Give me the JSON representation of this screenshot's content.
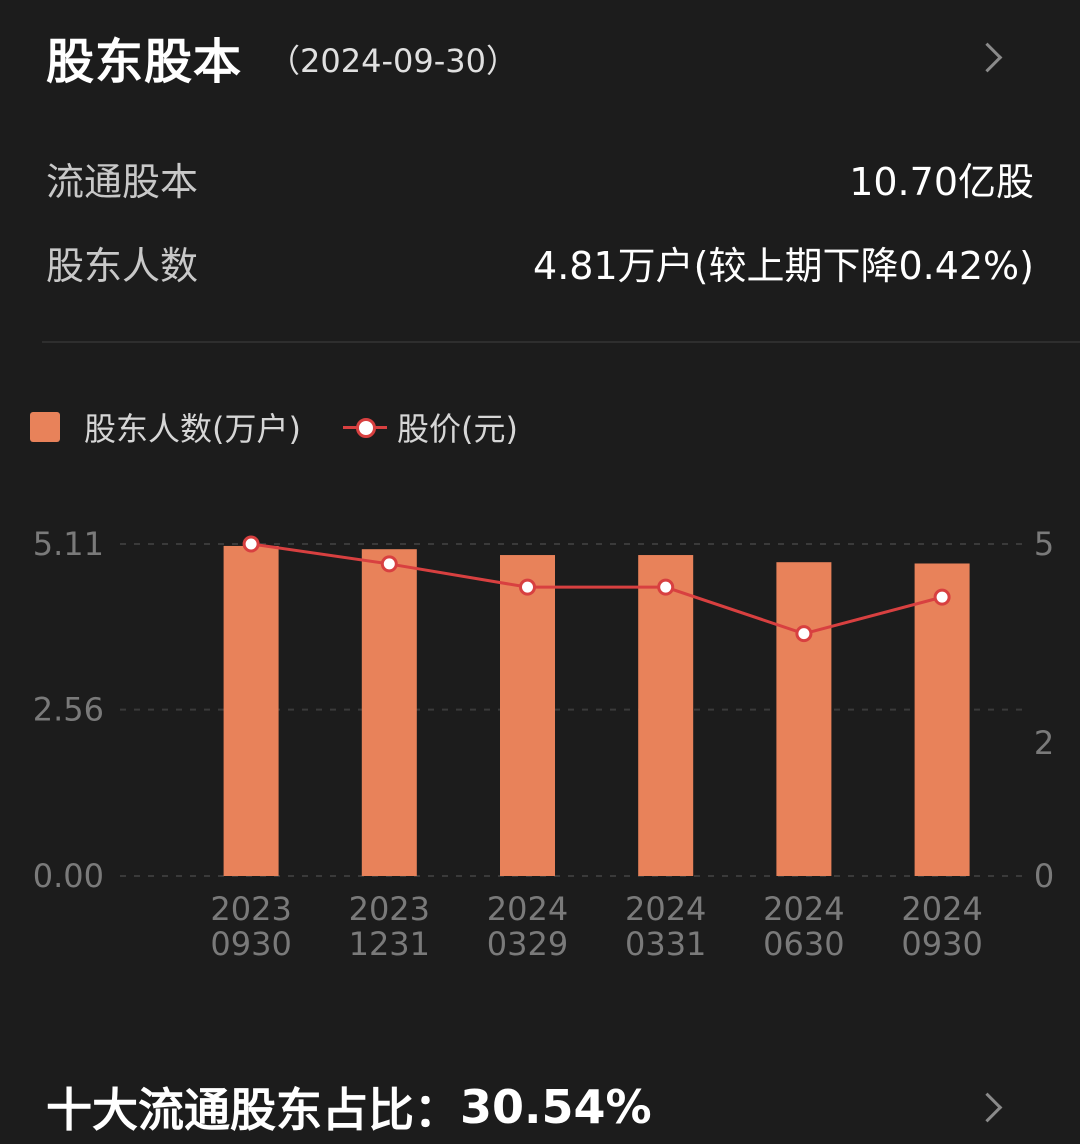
{
  "header": {
    "title": "股东股本",
    "date": "（2024-09-30）"
  },
  "stats": [
    {
      "label": "流通股本",
      "value": "10.70亿股"
    },
    {
      "label": "股东人数",
      "value": "4.81万户(较上期下降0.42%)"
    }
  ],
  "legend": {
    "bar_label": "股东人数(万户)",
    "line_label": "股价(元)"
  },
  "colors": {
    "bar": "#e8825a",
    "line": "#d84040",
    "point_fill": "#ffffff"
  },
  "chart_data": {
    "type": "bar",
    "categories": [
      [
        "2023",
        "0930"
      ],
      [
        "2023",
        "1231"
      ],
      [
        "2024",
        "0329"
      ],
      [
        "2024",
        "0331"
      ],
      [
        "2024",
        "0630"
      ],
      [
        "2024",
        "0930"
      ]
    ],
    "series": [
      {
        "name": "股东人数(万户)",
        "type": "bar",
        "axis": "left",
        "values": [
          5.08,
          5.03,
          4.94,
          4.94,
          4.83,
          4.81
        ]
      },
      {
        "name": "股价(元)",
        "type": "line",
        "axis": "right",
        "values": [
          5.0,
          4.7,
          4.35,
          4.35,
          3.65,
          4.2
        ]
      }
    ],
    "left_axis": {
      "ticks": [
        "5.11",
        "2.56",
        "0.00"
      ],
      "range": [
        0,
        5.11
      ]
    },
    "right_axis": {
      "ticks": [
        "5",
        "2",
        "0"
      ],
      "range": [
        0,
        5
      ]
    },
    "grid": true,
    "legend_position": "top-left"
  },
  "footer": {
    "title": "十大流通股东占比：",
    "value": "30.54%"
  }
}
